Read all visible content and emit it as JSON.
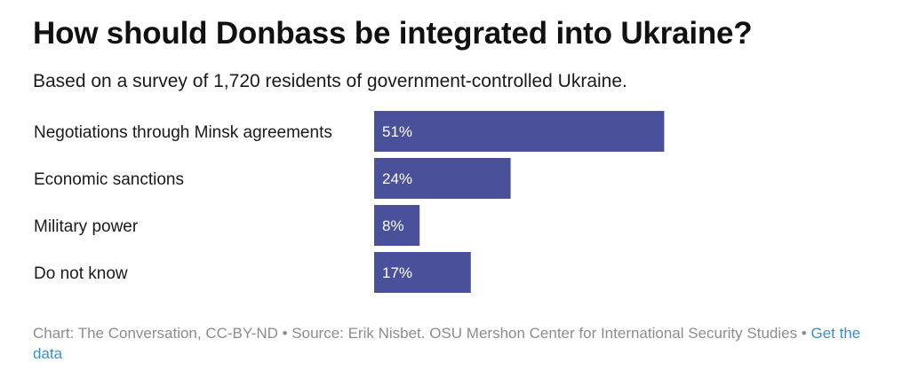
{
  "title": "How should Donbass be integrated into Ukraine?",
  "subtitle": "Based on a survey of 1,720 residents of government-controlled Ukraine.",
  "chart_data": {
    "type": "bar",
    "orientation": "horizontal",
    "title": "How should Donbass be integrated into Ukraine?",
    "subtitle": "Based on a survey of 1,720 residents of government-controlled Ukraine.",
    "categories": [
      "Negotiations through Minsk agreements",
      "Economic sanctions",
      "Military power",
      "Do not know"
    ],
    "values": [
      51,
      24,
      8,
      17
    ],
    "value_labels": [
      "51%",
      "24%",
      "8%",
      "17%"
    ],
    "unit": "%",
    "xlim": [
      0,
      100
    ],
    "bar_color": "#4a519a",
    "grid": false,
    "legend": "none"
  },
  "footer": {
    "text": "Chart: The Conversation, CC-BY-ND • Source: Erik Nisbet. OSU Mershon Center for International Security Studies • ",
    "link_label": "Get the data"
  }
}
